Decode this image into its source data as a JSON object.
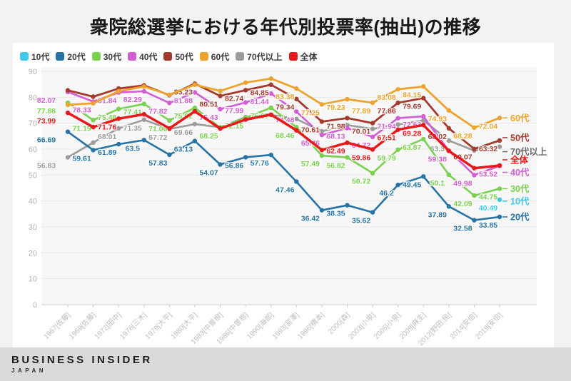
{
  "title": "衆院総選挙における年代別投票率(抽出)の推移",
  "footer": {
    "brand": "BUSINESS INSIDER",
    "sub": "JAPAN"
  },
  "colors": {
    "teens": "#3fc8e8",
    "twenties": "#2673a5",
    "thirties": "#79d14e",
    "forties": "#d45cd4",
    "fifties": "#a5392c",
    "sixties": "#eda42e",
    "seventies_plus": "#9c9c9c",
    "overall": "#e8191c",
    "grid": "#e8e8e8",
    "axis": "#cccccc",
    "tick_label": "#b3b3b3",
    "x_label": "#bdbdbd",
    "plot_bg": "#f7f7f7"
  },
  "chart_data": {
    "type": "line",
    "title": "衆院総選挙における年代別投票率(抽出)の推移",
    "grid": true,
    "legend_position": "top-left",
    "ylim": [
      0,
      90
    ],
    "yticks": [
      0,
      10,
      20,
      30,
      40,
      50,
      60,
      70,
      80,
      90
    ],
    "categories": [
      "1967[佐藤]",
      "1969[佐藤]",
      "1972[田中]",
      "1976[三木]",
      "1979[大平]",
      "1980[大平]",
      "1983[中曽根]",
      "1986[中曽根]",
      "1990[海部]",
      "1993[宮澤]",
      "1996[橋本]",
      "2000[森]",
      "2003[小泉]",
      "2005[小泉]",
      "2009[麻生]",
      "2012[野田;民]",
      "2014[安倍]",
      "2019[安倍]"
    ],
    "series": [
      {
        "name": "10代",
        "color": "#3fc8e8",
        "width": 2.4,
        "values": [
          null,
          null,
          null,
          null,
          null,
          null,
          null,
          null,
          null,
          null,
          null,
          null,
          null,
          null,
          null,
          null,
          null,
          40.49
        ],
        "labels": [
          null,
          null,
          null,
          null,
          null,
          null,
          null,
          null,
          null,
          null,
          null,
          null,
          null,
          null,
          null,
          null,
          null,
          "40.49"
        ]
      },
      {
        "name": "20代",
        "color": "#2673a5",
        "width": 2.6,
        "values": [
          66.69,
          59.61,
          61.89,
          63.5,
          57.83,
          63.13,
          54.07,
          56.86,
          57.76,
          47.46,
          36.42,
          38.35,
          35.62,
          46.2,
          49.45,
          37.89,
          32.58,
          33.85
        ],
        "labels": [
          "66.69",
          "59.61",
          "61.89",
          "63.5",
          "57.83",
          "63.13",
          "54.07",
          "56.86",
          "57.76",
          "47.46",
          "36.42",
          "38.35",
          "35.62",
          "46.2",
          "49.45",
          "37.89",
          "32.58",
          "33.85"
        ]
      },
      {
        "name": "30代",
        "color": "#79d14e",
        "width": 2.6,
        "values": [
          77.88,
          71.19,
          75.48,
          77.41,
          71.06,
          75.92,
          68.25,
          72.15,
          75.97,
          68.46,
          57.49,
          56.82,
          50.72,
          59.79,
          63.87,
          50.1,
          42.09,
          44.75
        ],
        "labels": [
          "77.88",
          "71.19",
          "75.48",
          "77.41",
          "71.06",
          "75.92",
          "68.25",
          "72.15",
          "75.97",
          "68.46",
          "57.49",
          "56.82",
          "50.72",
          "59.79",
          "63.87",
          "50.1",
          "42.09",
          "44.75"
        ]
      },
      {
        "name": "40代",
        "color": "#d45cd4",
        "width": 2.6,
        "values": [
          82.07,
          78.33,
          81.84,
          82.29,
          77.82,
          81.88,
          75.43,
          77.99,
          81.44,
          74.48,
          65.46,
          68.13,
          64.72,
          71.94,
          72.63,
          59.38,
          49.98,
          53.52
        ],
        "labels": [
          "82.07",
          "78.33",
          "81.84",
          "82.29",
          "77.82",
          "81.88",
          "75.43",
          "77.99",
          "81.44",
          "74.48",
          "65.46",
          "68.13",
          "64.72",
          "71.94",
          "72.63",
          "59.38",
          "49.98",
          "53.52"
        ]
      },
      {
        "name": "50代",
        "color": "#a5392c",
        "width": 2.8,
        "values": [
          82.68,
          80.23,
          83.38,
          84.57,
          80.82,
          85.23,
          80.51,
          82.74,
          84.85,
          79.34,
          70.61,
          71.98,
          70.01,
          77.86,
          79.69,
          68.02,
          60.07,
          63.32
        ],
        "labels": [
          null,
          null,
          null,
          null,
          null,
          "85.23",
          "80.51",
          "82.74",
          "84.85",
          "79.34",
          "70.61",
          "71.98",
          "70.01",
          "77.86",
          "79.69",
          "68.02",
          "60.07",
          "63.32"
        ]
      },
      {
        "name": "60代",
        "color": "#eda42e",
        "width": 2.8,
        "values": [
          77.08,
          77.7,
          82.34,
          84.13,
          80.97,
          84.84,
          82.43,
          85.66,
          87.21,
          83.38,
          77.25,
          79.23,
          77.89,
          83.08,
          84.15,
          74.93,
          68.28,
          72.04
        ],
        "labels": [
          null,
          null,
          null,
          null,
          null,
          null,
          null,
          null,
          null,
          "83.38",
          "77.25",
          "79.23",
          "77.89",
          "83.08",
          "84.15",
          "74.93",
          "68.28",
          "72.04"
        ]
      },
      {
        "name": "70代以上",
        "color": "#9c9c9c",
        "width": 2.6,
        "values": [
          56.83,
          62.52,
          68.01,
          71.35,
          67.72,
          69.66,
          68.41,
          72.36,
          73.21,
          71.61,
          66.88,
          69.28,
          67.78,
          69.48,
          71.06,
          63.3,
          59.46,
          60.94
        ],
        "labels": [
          "56.83",
          null,
          "68.01",
          "71.35",
          "67.72",
          "69.66",
          null,
          null,
          null,
          null,
          null,
          null,
          null,
          null,
          null,
          "63.3",
          null,
          null
        ]
      },
      {
        "name": "全体",
        "color": "#e8191c",
        "width": 3.5,
        "values": [
          73.99,
          68.51,
          71.76,
          73.45,
          68.01,
          74.57,
          67.94,
          71.4,
          73.31,
          67.26,
          59.65,
          62.49,
          59.86,
          67.51,
          69.28,
          59.32,
          52.66,
          53.68
        ],
        "labels": [
          "73.99",
          null,
          "71.76",
          null,
          null,
          null,
          null,
          null,
          null,
          null,
          null,
          "62.49",
          "59.86",
          "67.51",
          "69.28",
          null,
          null,
          null
        ]
      }
    ],
    "side_labels": [
      {
        "text": "60代",
        "value": 72.04,
        "color": "#eda42e",
        "dy": 0
      },
      {
        "text": "50代",
        "value": 63.32,
        "color": "#a5392c",
        "dy": -4
      },
      {
        "text": "70代以上",
        "value": 60.94,
        "color": "#6d6d6d",
        "dy": 7
      },
      {
        "text": "全体",
        "value": 53.68,
        "color": "#e8191c",
        "dy": -8
      },
      {
        "text": "40代",
        "value": 53.52,
        "color": "#d45cd4",
        "dy": 9
      },
      {
        "text": "30代",
        "value": 44.75,
        "color": "#79d14e",
        "dy": 0
      },
      {
        "text": "10代",
        "value": 40.49,
        "color": "#3fc8e8",
        "dy": 2
      },
      {
        "text": "20代",
        "value": 33.85,
        "color": "#2673a5",
        "dy": 0
      }
    ]
  }
}
